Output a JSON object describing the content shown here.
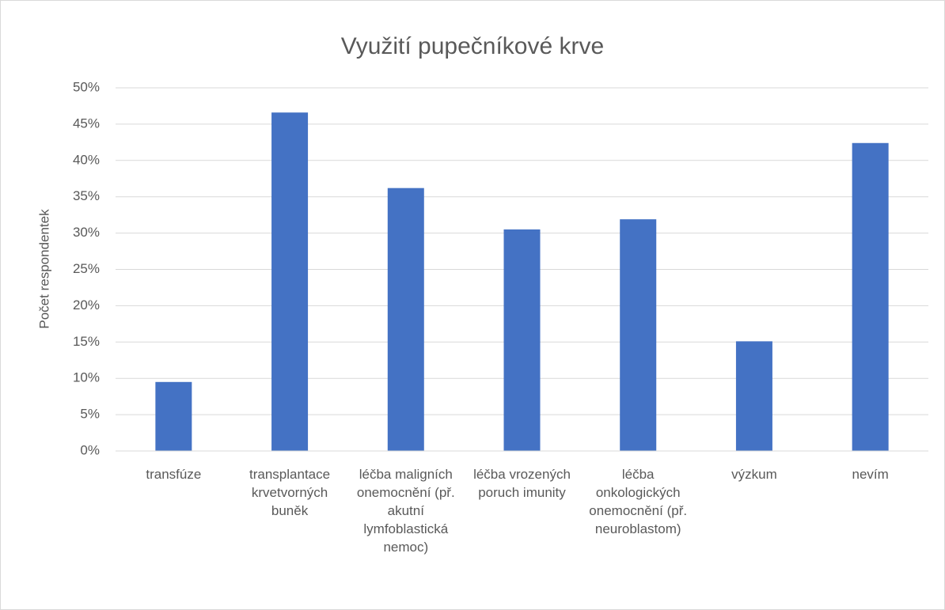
{
  "chart_data": {
    "type": "bar",
    "title": "Využití pupečníkové krve",
    "y_label": "Počet respondentek",
    "categories": [
      "transfúze",
      "transplantace krvetvorných buněk",
      "léčba maligních onemocnění (př. akutní lymfoblastická nemoc)",
      "léčba vrozených poruch imunity",
      "léčba onkologických onemocnění (př. neuroblastom)",
      "výzkum",
      "nevím"
    ],
    "values": [
      9.5,
      46.6,
      36.2,
      30.5,
      31.9,
      15.1,
      42.4
    ],
    "color": "#4472c4",
    "ylim": [
      0,
      50
    ],
    "yticks": [
      {
        "value": 0,
        "label": "0%"
      },
      {
        "value": 5,
        "label": "5%"
      },
      {
        "value": 10,
        "label": "10%"
      },
      {
        "value": 15,
        "label": "15%"
      },
      {
        "value": 20,
        "label": "20%"
      },
      {
        "value": 25,
        "label": "25%"
      },
      {
        "value": 30,
        "label": "30%"
      },
      {
        "value": 35,
        "label": "35%"
      },
      {
        "value": 40,
        "label": "40%"
      },
      {
        "value": 45,
        "label": "45%"
      },
      {
        "value": 50,
        "label": "50%"
      }
    ],
    "grid": true
  }
}
